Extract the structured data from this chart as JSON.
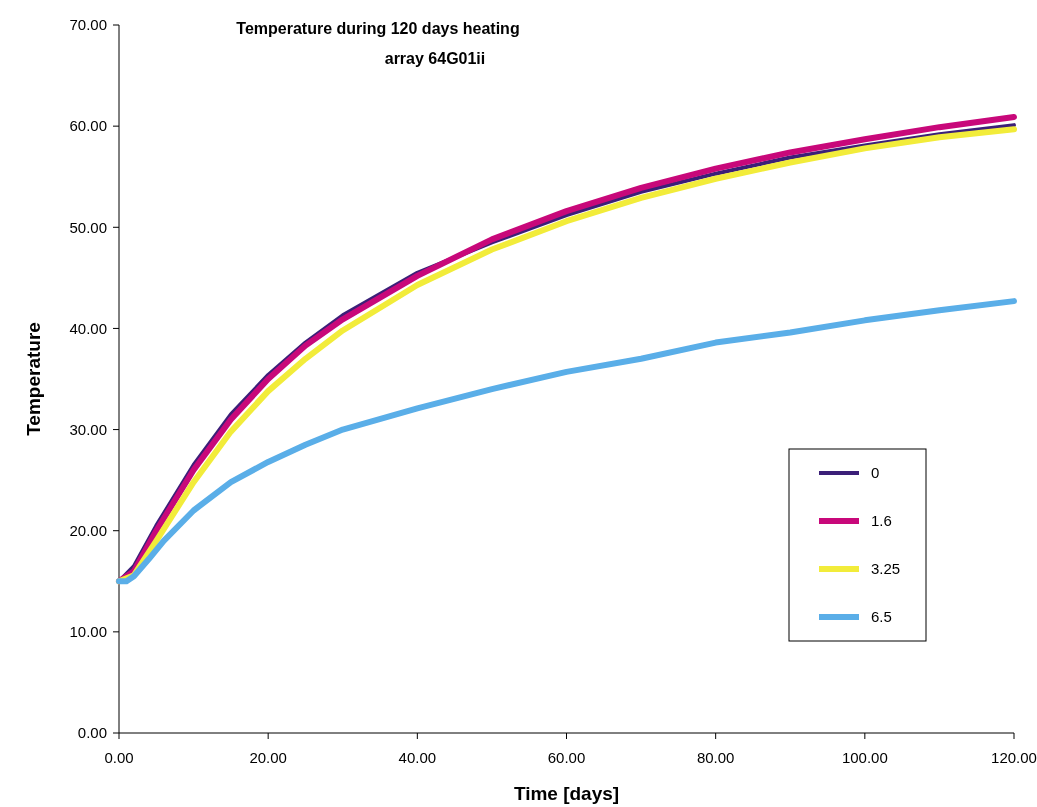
{
  "chart_data": {
    "type": "line",
    "title": "Temperature during 120 days heating",
    "subtitle": "array 64G01ii",
    "xlabel": "Time [days]",
    "ylabel": "Temperature",
    "xlim": [
      0,
      120
    ],
    "ylim": [
      0,
      70
    ],
    "xticks": [
      {
        "value": 0,
        "label": "0.00"
      },
      {
        "value": 20,
        "label": "20.00"
      },
      {
        "value": 40,
        "label": "40.00"
      },
      {
        "value": 60,
        "label": "60.00"
      },
      {
        "value": 80,
        "label": "80.00"
      },
      {
        "value": 100,
        "label": "100.00"
      },
      {
        "value": 120,
        "label": "120.00"
      }
    ],
    "yticks": [
      {
        "value": 0,
        "label": "0.00"
      },
      {
        "value": 10,
        "label": "10.00"
      },
      {
        "value": 20,
        "label": "20.00"
      },
      {
        "value": 30,
        "label": "30.00"
      },
      {
        "value": 40,
        "label": "40.00"
      },
      {
        "value": 50,
        "label": "50.00"
      },
      {
        "value": 60,
        "label": "60.00"
      },
      {
        "value": 70,
        "label": "70.00"
      }
    ],
    "grid": false,
    "legend": "right",
    "marker": "none",
    "line_style": "solid",
    "x": [
      0,
      2,
      5,
      10,
      15,
      20,
      25,
      30,
      40,
      50,
      60,
      70,
      80,
      90,
      100,
      110,
      120
    ],
    "series": [
      {
        "name": "0",
        "color": "#3b1f78",
        "values": [
          15,
          16.5,
          20.5,
          26.5,
          31.5,
          35.4,
          38.6,
          41.3,
          45.5,
          48.5,
          51.2,
          53.5,
          55.3,
          56.9,
          58.1,
          59.2,
          60.1
        ]
      },
      {
        "name": "1.6",
        "color": "#c8087a",
        "values": [
          15,
          16,
          20,
          26,
          31,
          35,
          38.3,
          40.9,
          45.2,
          48.8,
          51.6,
          53.9,
          55.8,
          57.4,
          58.7,
          59.9,
          60.9
        ]
      },
      {
        "name": "3.25",
        "color": "#f2ec3a",
        "values": [
          15,
          15.6,
          19,
          24.8,
          29.8,
          33.8,
          37,
          39.8,
          44.3,
          47.8,
          50.6,
          52.9,
          54.8,
          56.4,
          57.8,
          58.9,
          59.7
        ]
      },
      {
        "name": "6.5",
        "color": "#5aaee8",
        "x": [
          0,
          1,
          2,
          4,
          6,
          10,
          15,
          20,
          25,
          30,
          40,
          50,
          60,
          70,
          80,
          90,
          100,
          110,
          120
        ],
        "values": [
          15,
          15,
          15.5,
          17.2,
          19,
          22,
          24.8,
          26.8,
          28.5,
          30,
          32.1,
          34,
          35.7,
          37,
          38.6,
          39.6,
          40.8,
          41.8,
          42.7
        ]
      }
    ]
  }
}
